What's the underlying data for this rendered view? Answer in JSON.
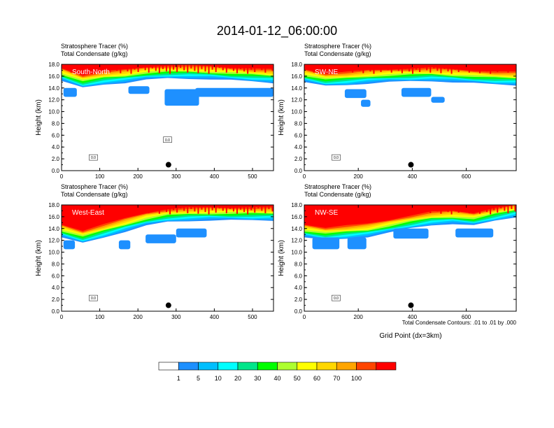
{
  "title": "2014-01-12_06:00:00",
  "note": "Total Condensate Contours: .01 to .01 by .000",
  "shared_xlabel": "Grid Point (dx=3km)",
  "colorbar": {
    "colors": [
      "#ffffff",
      "#1e90ff",
      "#00bfff",
      "#00ffff",
      "#00e68a",
      "#00ff00",
      "#adff2f",
      "#ffff00",
      "#ffd700",
      "#ffa500",
      "#ff4500",
      "#ff0000"
    ],
    "labels": [
      "1",
      "5",
      "10",
      "20",
      "30",
      "40",
      "50",
      "60",
      "70",
      "100"
    ]
  },
  "chart_data": [
    {
      "type": "heatmap",
      "subtitle1": "Stratosphere Tracer   (%)",
      "subtitle2": "Total Condensate   (g/kg)",
      "section": "South-North",
      "ylabel": "Height (km)",
      "xlabel": "",
      "ylim": [
        0,
        18
      ],
      "yticks": [
        "0.0",
        "2.0",
        "4.0",
        "6.0",
        "8.0",
        "10.0",
        "12.0",
        "14.0",
        "16.0",
        "18.0"
      ],
      "xlim": [
        0,
        555
      ],
      "xticks": [
        0,
        100,
        200,
        300,
        400,
        500
      ],
      "marker": {
        "x": 280,
        "y": 1.0
      },
      "tropopause_km": [
        15.2,
        14.0,
        14.6,
        14.9,
        15.4,
        15.6,
        15.6,
        15.5,
        15.3,
        15.1,
        14.9
      ],
      "blue_regions": [
        [
          5,
          12.5,
          40,
          14
        ],
        [
          175,
          13,
          230,
          14.3
        ],
        [
          270,
          11,
          360,
          13.8
        ],
        [
          350,
          12.5,
          555,
          14
        ]
      ],
      "contour_labels": [
        "0.0",
        "0.0"
      ]
    },
    {
      "type": "heatmap",
      "subtitle1": "Stratosphere Tracer   (%)",
      "subtitle2": "Total Condensate   (g/kg)",
      "section": "SW-NE",
      "ylabel": "Height (km)",
      "xlabel": "",
      "ylim": [
        0,
        18
      ],
      "yticks": [
        "0.0",
        "2.0",
        "4.0",
        "6.0",
        "8.0",
        "10.0",
        "12.0",
        "14.0",
        "16.0",
        "18.0"
      ],
      "xlim": [
        0,
        785
      ],
      "xticks": [
        0,
        200,
        400,
        600
      ],
      "marker": {
        "x": 395,
        "y": 1.0
      },
      "tropopause_km": [
        15.0,
        14.3,
        14.5,
        14.8,
        15.0,
        15.1,
        15.2,
        15.0,
        14.8,
        14.6,
        14.5
      ],
      "blue_regions": [
        [
          150,
          12.3,
          230,
          13.8
        ],
        [
          360,
          12.5,
          470,
          14
        ],
        [
          210,
          10.8,
          245,
          12
        ],
        [
          470,
          11.5,
          520,
          12.5
        ]
      ],
      "contour_labels": [
        "0.0"
      ]
    },
    {
      "type": "heatmap",
      "subtitle1": "Stratosphere Tracer   (%)",
      "subtitle2": "Total Condensate   (g/kg)",
      "section": "West-East",
      "ylabel": "Height (km)",
      "xlabel": "",
      "ylim": [
        0,
        18
      ],
      "yticks": [
        "0.0",
        "2.0",
        "4.0",
        "6.0",
        "8.0",
        "10.0",
        "12.0",
        "14.0",
        "16.0",
        "18.0"
      ],
      "xlim": [
        0,
        555
      ],
      "xticks": [
        0,
        100,
        200,
        300,
        400,
        500
      ],
      "marker": {
        "x": 280,
        "y": 1.0
      },
      "tropopause_km": [
        12.5,
        11.5,
        12.5,
        13.5,
        14.5,
        15.1,
        15.3,
        15.4,
        15.4,
        15.4,
        15.4
      ],
      "blue_regions": [
        [
          5,
          10.5,
          35,
          12
        ],
        [
          150,
          10.5,
          180,
          12
        ],
        [
          220,
          11.5,
          300,
          13
        ],
        [
          300,
          12.5,
          380,
          14
        ]
      ],
      "contour_labels": [
        "0.0"
      ]
    },
    {
      "type": "heatmap",
      "subtitle1": "Stratosphere Tracer   (%)",
      "subtitle2": "Total Condensate   (g/kg)",
      "section": "NW-SE",
      "ylabel": "Height (km)",
      "xlabel": "Grid Point (dx=3km)",
      "ylim": [
        0,
        18
      ],
      "yticks": [
        "0.0",
        "2.0",
        "4.0",
        "6.0",
        "8.0",
        "10.0",
        "12.0",
        "14.0",
        "16.0",
        "18.0"
      ],
      "xlim": [
        0,
        785
      ],
      "xticks": [
        0,
        200,
        400,
        600
      ],
      "marker": {
        "x": 395,
        "y": 1.0
      },
      "tropopause_km": [
        12.5,
        12.0,
        12.3,
        12.6,
        13.3,
        14.0,
        14.6,
        14.8,
        14.5,
        15.3,
        16.0
      ],
      "blue_regions": [
        [
          30,
          10.5,
          130,
          12.5
        ],
        [
          160,
          10.5,
          230,
          12.5
        ],
        [
          330,
          12.3,
          460,
          14
        ],
        [
          560,
          12.5,
          700,
          14
        ]
      ],
      "contour_labels": [
        "0.0"
      ]
    }
  ]
}
